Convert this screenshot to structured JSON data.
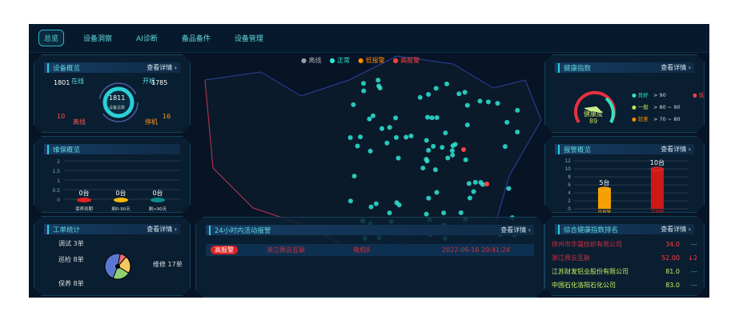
{
  "nav": {
    "tabs": [
      "总览",
      "设备洞察",
      "AI诊断",
      "备品备件",
      "设备管理"
    ],
    "active": 0
  },
  "more": "查看详情 ›",
  "legend": [
    {
      "label": "离线",
      "color": "#9aa0a6"
    },
    {
      "label": "正常",
      "color": "#2ee6d6"
    },
    {
      "label": "低报警",
      "color": "#ff8c00"
    },
    {
      "label": "高报警",
      "color": "#ff4040"
    }
  ],
  "overview": {
    "title": "设备概览",
    "online_label": "在线",
    "online": "1801",
    "on_label": "开机",
    "on": "1785",
    "offline_label": "离线",
    "offline": "10",
    "stop_label": "停机",
    "stop": "16",
    "total": "1811",
    "total_label": "设备总数"
  },
  "maint": {
    "title": "维保概览",
    "yticks": [
      "2",
      "1.5",
      "1",
      "0.5",
      "0"
    ],
    "bars": [
      {
        "value": "0台",
        "label": "保养到期",
        "color": "#e02424"
      },
      {
        "value": "0台",
        "label": "剩0-90天",
        "color": "#f5b800"
      },
      {
        "value": "0台",
        "label": "剩>90天",
        "color": "#0c8a8a"
      }
    ]
  },
  "orders": {
    "title": "工单统计",
    "items": [
      {
        "label": "调试 3单",
        "value": 3,
        "color": "#f07070"
      },
      {
        "label": "巡检 8单",
        "value": 8,
        "color": "#f5c860"
      },
      {
        "label": "保养 8单",
        "value": 8,
        "color": "#90d070"
      },
      {
        "label": "维修 17单",
        "value": 17,
        "color": "#5a78d0"
      }
    ]
  },
  "alerts": {
    "title": "24小时内活动报警",
    "rows": [
      {
        "level": "高报警",
        "company": "浙江舜云互联",
        "device": "电机8",
        "time": "2022-06-16 20:41:24"
      }
    ]
  },
  "health": {
    "title": "健康指数",
    "gauge_label": "健康度",
    "score": "89",
    "legend": [
      {
        "label": "良好",
        "range": "> 90",
        "color": "#2ee6c0"
      },
      {
        "label": "一般",
        "range": "> 80 ~ 90",
        "color": "#c8e060"
      },
      {
        "label": "较差",
        "range": "> 70 ~ 80",
        "color": "#ff8c00"
      },
      {
        "label": "低",
        "range": "",
        "color": "#ff4040"
      }
    ]
  },
  "alarm": {
    "title": "报警概览",
    "yticks": [
      "12",
      "10",
      "8",
      "6",
      "4",
      "2",
      "0"
    ],
    "bars": [
      {
        "label": "低报警",
        "value": 5,
        "text": "5台",
        "color": "#f5a000"
      },
      {
        "label": "高报警",
        "value": 10,
        "text": "10台",
        "color": "#d01818"
      }
    ]
  },
  "rank": {
    "title": "综合健康指数排名",
    "rows": [
      {
        "name": "徐州市华晟纺织有限公司",
        "score": "34.0",
        "trend": "—",
        "color": "#ff4040"
      },
      {
        "name": "浙江舜云互联",
        "score": "52.00",
        "trend": "↓2",
        "color": "#ff4040"
      },
      {
        "name": "江苏财发铝业股份有限公司",
        "score": "81.0",
        "trend": "—",
        "color": "#c8f060"
      },
      {
        "name": "中国石化洛阳石化公司",
        "score": "83.0",
        "trend": "—",
        "color": "#c8f060"
      }
    ]
  }
}
